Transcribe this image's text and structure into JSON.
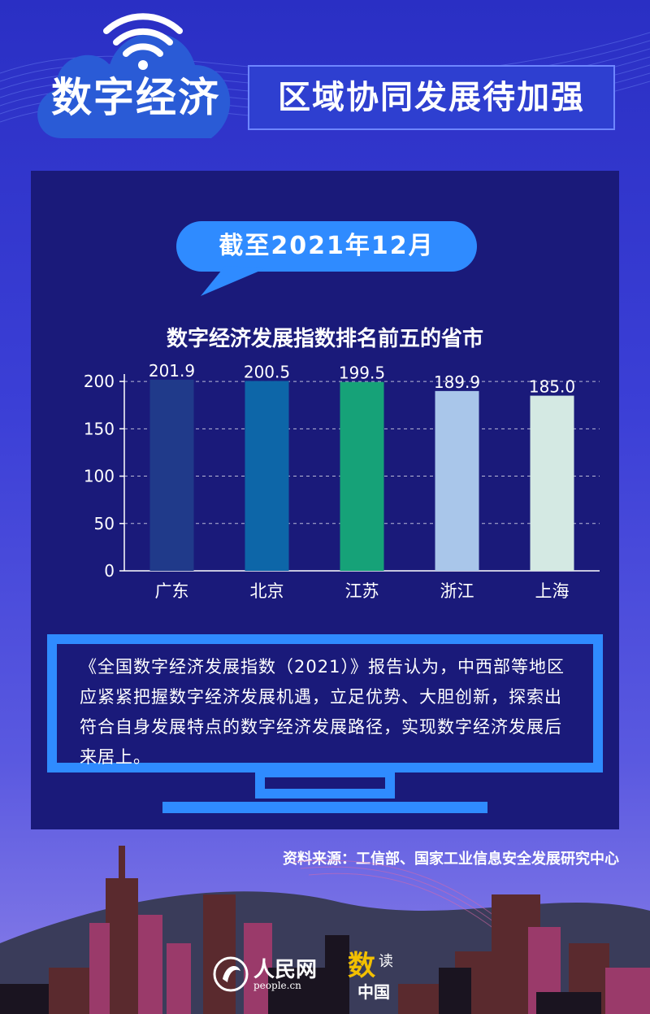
{
  "header": {
    "title_left": "数字经济",
    "title_right": "区域协同发展待加强"
  },
  "badge": {
    "date_text": "截至2021年12月"
  },
  "chart_data": {
    "type": "bar",
    "title": "数字经济发展指数排名前五的省市",
    "categories": [
      "广东",
      "北京",
      "江苏",
      "浙江",
      "上海"
    ],
    "values": [
      201.9,
      200.5,
      199.5,
      189.9,
      185.0
    ],
    "value_labels": [
      "201.9",
      "200.5",
      "199.5",
      "189.9",
      "185.0"
    ],
    "colors": [
      "#203a8a",
      "#0d66a8",
      "#16a278",
      "#a9c6ea",
      "#d4e9e3"
    ],
    "ylim": [
      0,
      225
    ],
    "yticks": [
      0,
      50,
      100,
      150,
      200
    ],
    "grid": "dashed-horizontal"
  },
  "report": {
    "text": "《全国数字经济发展指数（2021）》报告认为，中西部等地区应紧紧把握数字经济发展机遇，立足优势、大胆创新，探索出符合自身发展特点的数字经济发展路径，实现数字经济发展后来居上。"
  },
  "source": {
    "text": "资料来源：工信部、国家工业信息安全发展研究中心"
  },
  "logos": {
    "people_name": "人民网",
    "people_url": "people.cn",
    "shu": "数",
    "du": "读",
    "zhongguo": "中国"
  },
  "colors": {
    "panel": "#1a1a7a",
    "accent": "#2f8bff",
    "monitor": "#2f8bff"
  }
}
